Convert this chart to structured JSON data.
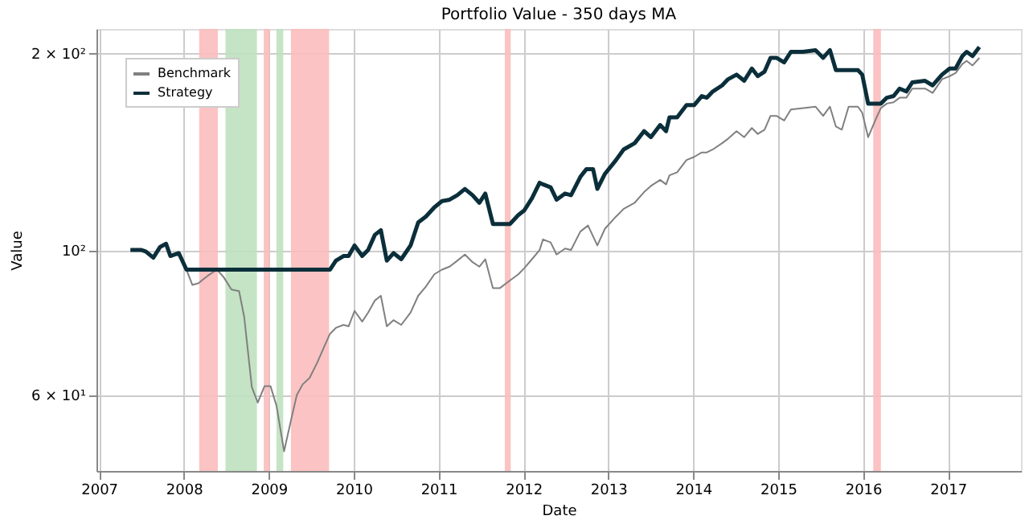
{
  "chart_data": {
    "type": "line",
    "title": "Portfolio Value - 350 days MA",
    "xlabel": "Date",
    "ylabel": "Value",
    "log": "y",
    "grid": true,
    "legend": "top left",
    "marker": "none",
    "line_style": "solid",
    "xlim": [
      2006.97,
      2017.86
    ],
    "xticks": [
      2007,
      2008,
      2009,
      2010,
      2011,
      2012,
      2013,
      2014,
      2015,
      2016,
      2017
    ],
    "ylim": [
      45.9,
      217.9
    ],
    "yticks": [
      {
        "value": 60,
        "label": "6 × 10¹"
      },
      {
        "value": 100,
        "label": "10²"
      },
      {
        "value": 200,
        "label": "2 × 10²"
      }
    ],
    "bands": [
      {
        "axis": "x",
        "from": 2008.18,
        "to": 2008.4,
        "color": "#fbbcbc"
      },
      {
        "axis": "x",
        "from": 2008.49,
        "to": 2008.86,
        "color": "#bfe0bf"
      },
      {
        "axis": "x",
        "from": 2008.94,
        "to": 2009.01,
        "color": "#fbbcbc"
      },
      {
        "axis": "x",
        "from": 2009.09,
        "to": 2009.17,
        "color": "#bfe0bf"
      },
      {
        "axis": "x",
        "from": 2009.26,
        "to": 2009.71,
        "color": "#fbbcbc"
      },
      {
        "axis": "x",
        "from": 2011.78,
        "to": 2011.85,
        "color": "#fbbcbc"
      },
      {
        "axis": "x",
        "from": 2016.12,
        "to": 2016.21,
        "color": "#fbbcbc"
      }
    ],
    "series": [
      {
        "name": "Benchmark",
        "color": "#808080",
        "x": [
          2007.37,
          2007.5,
          2007.55,
          2007.64,
          2007.72,
          2007.79,
          2007.84,
          2007.94,
          2008.03,
          2008.1,
          2008.17,
          2008.28,
          2008.39,
          2008.47,
          2008.56,
          2008.65,
          2008.71,
          2008.8,
          2008.87,
          2008.95,
          2009.02,
          2009.09,
          2009.18,
          2009.26,
          2009.33,
          2009.4,
          2009.48,
          2009.57,
          2009.64,
          2009.72,
          2009.79,
          2009.88,
          2009.94,
          2010.01,
          2010.1,
          2010.17,
          2010.25,
          2010.32,
          2010.39,
          2010.47,
          2010.56,
          2010.67,
          2010.76,
          2010.85,
          2010.95,
          2011.04,
          2011.13,
          2011.22,
          2011.31,
          2011.4,
          2011.48,
          2011.55,
          2011.64,
          2011.72,
          2011.84,
          2011.94,
          2012.01,
          2012.1,
          2012.19,
          2012.23,
          2012.32,
          2012.39,
          2012.49,
          2012.56,
          2012.67,
          2012.76,
          2012.87,
          2012.96,
          2013.09,
          2013.18,
          2013.31,
          2013.42,
          2013.5,
          2013.61,
          2013.68,
          2013.72,
          2013.81,
          2013.92,
          2014.01,
          2014.1,
          2014.16,
          2014.23,
          2014.34,
          2014.41,
          2014.51,
          2014.6,
          2014.69,
          2014.76,
          2014.84,
          2014.91,
          2014.98,
          2015.07,
          2015.15,
          2015.44,
          2015.53,
          2015.61,
          2015.68,
          2015.75,
          2015.83,
          2015.94,
          2015.99,
          2016.06,
          2016.16,
          2016.21,
          2016.28,
          2016.36,
          2016.43,
          2016.51,
          2016.58,
          2016.73,
          2016.82,
          2016.93,
          2017.02,
          2017.09,
          2017.17,
          2017.22,
          2017.29,
          2017.37
        ],
        "values": [
          100,
          100,
          99.5,
          97.3,
          101.1,
          102.2,
          97.9,
          98.9,
          93.3,
          88.4,
          88.9,
          91.3,
          93.3,
          90.8,
          87,
          86.5,
          79,
          61.7,
          58.4,
          61.9,
          61.9,
          57.8,
          49.2,
          54.8,
          60,
          62.3,
          63.7,
          67.2,
          70.5,
          74.4,
          76,
          76.8,
          76.4,
          80.7,
          77.7,
          80.2,
          83.7,
          85.1,
          76.4,
          78.1,
          76.8,
          80.2,
          85.1,
          87.9,
          91.8,
          93.3,
          94.3,
          96.3,
          98.4,
          95.8,
          94.3,
          96.8,
          87.4,
          87.4,
          89.8,
          91.8,
          93.8,
          96.8,
          100,
          103.8,
          102.7,
          98.4,
          100.5,
          100,
          106.7,
          109,
          101.6,
          107.8,
          112.5,
          115.6,
          118.1,
          122.6,
          125.3,
          128,
          126,
          130.1,
          131.5,
          137.3,
          138.8,
          141,
          141,
          142.5,
          145.7,
          148,
          152,
          148.8,
          153.7,
          150.5,
          152.8,
          160.4,
          160.4,
          157.8,
          164,
          165.7,
          160.4,
          165.7,
          154.5,
          152.8,
          165.7,
          165.7,
          162.2,
          148.8,
          159.6,
          164.9,
          167.5,
          168.3,
          171,
          171,
          176.6,
          176.6,
          173.9,
          182.5,
          184.5,
          186.5,
          192.6,
          194.7,
          191.6,
          196.8
        ]
      },
      {
        "name": "Strategy",
        "color": "#0b2f3a",
        "x": [
          2007.37,
          2007.5,
          2007.55,
          2007.64,
          2007.72,
          2007.79,
          2007.84,
          2007.94,
          2008.03,
          2009.72,
          2009.79,
          2009.88,
          2009.94,
          2010.01,
          2010.1,
          2010.17,
          2010.25,
          2010.32,
          2010.39,
          2010.47,
          2010.56,
          2010.67,
          2010.76,
          2010.85,
          2010.95,
          2011.04,
          2011.13,
          2011.22,
          2011.31,
          2011.4,
          2011.48,
          2011.55,
          2011.64,
          2011.84,
          2011.94,
          2012.01,
          2012.1,
          2012.19,
          2012.23,
          2012.32,
          2012.39,
          2012.49,
          2012.56,
          2012.67,
          2012.74,
          2012.82,
          2012.87,
          2012.96,
          2013.09,
          2013.18,
          2013.31,
          2013.42,
          2013.5,
          2013.61,
          2013.68,
          2013.72,
          2013.81,
          2013.92,
          2014.01,
          2014.1,
          2014.16,
          2014.23,
          2014.34,
          2014.41,
          2014.51,
          2014.6,
          2014.69,
          2014.76,
          2014.84,
          2014.91,
          2014.98,
          2015.07,
          2015.15,
          2015.29,
          2015.44,
          2015.53,
          2015.61,
          2015.68,
          2015.94,
          2015.99,
          2016.06,
          2016.21,
          2016.28,
          2016.36,
          2016.43,
          2016.51,
          2016.58,
          2016.73,
          2016.82,
          2016.93,
          2017.02,
          2017.09,
          2017.17,
          2017.22,
          2017.29,
          2017.37
        ],
        "values": [
          100,
          100,
          99.5,
          97.3,
          101.1,
          102.2,
          97.9,
          98.9,
          93.3,
          93.3,
          96.3,
          97.9,
          97.9,
          101.6,
          97.9,
          100,
          105.5,
          107.2,
          96.3,
          98.9,
          96.8,
          101.6,
          110.2,
          112.5,
          116.2,
          118.8,
          119.4,
          121.3,
          124,
          121.3,
          118.1,
          122,
          109.6,
          109.6,
          113.1,
          115,
          120,
          126.7,
          126,
          124.7,
          119.4,
          122,
          121.3,
          129.4,
          132.9,
          132.9,
          124,
          130.8,
          137.3,
          142.5,
          145.7,
          152,
          148.8,
          155.3,
          152,
          159.6,
          159.6,
          166.6,
          166.6,
          172,
          171,
          174.8,
          178.6,
          182.5,
          185.5,
          181.5,
          189.5,
          184.5,
          187.5,
          196.8,
          196.8,
          193.7,
          201,
          201,
          202.2,
          196.8,
          202.2,
          188.5,
          188.5,
          185.5,
          167.5,
          167.5,
          171,
          172,
          176.6,
          174.8,
          180.5,
          181.5,
          178.6,
          185.5,
          189.5,
          189.5,
          198,
          201,
          198,
          204.4
        ]
      }
    ]
  }
}
